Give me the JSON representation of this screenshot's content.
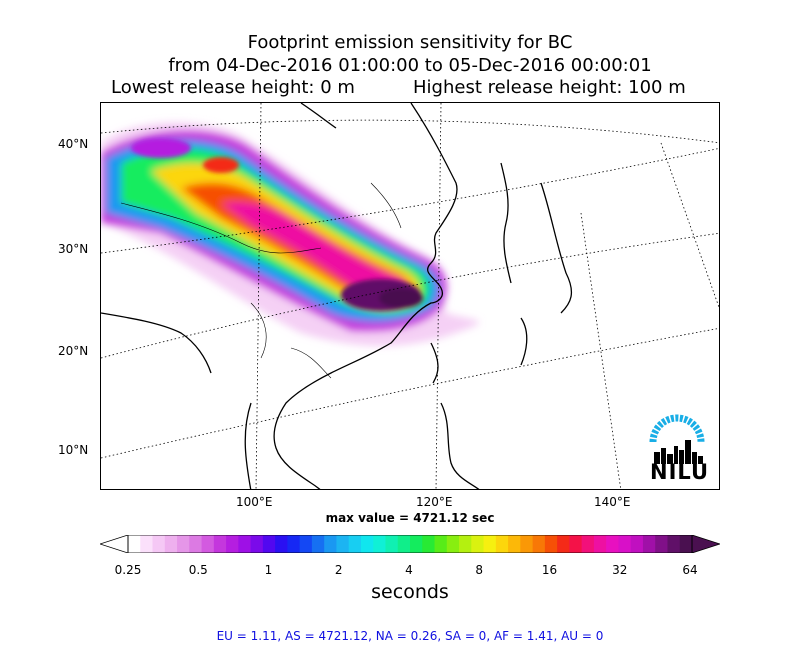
{
  "title": {
    "line1": "Footprint emission sensitivity for BC",
    "line2": "from 04-Dec-2016 01:00:00 to 05-Dec-2016 00:00:01",
    "lowest_release": "Lowest release height: 0 m",
    "highest_release": "Highest release height: 100 m"
  },
  "axes": {
    "lat_labels": [
      "40°N",
      "30°N",
      "20°N",
      "10°N"
    ],
    "lon_labels": [
      "100°E",
      "120°E",
      "140°E"
    ]
  },
  "max_value_text": "max value = 4721.12 sec",
  "colorbar": {
    "ticks": [
      "0.25",
      "0.5",
      "1",
      "2",
      "4",
      "8",
      "16",
      "32",
      "64"
    ],
    "label": "seconds",
    "colors": [
      "#ffffff",
      "#fbe0fb",
      "#f5c8f5",
      "#eeb0ee",
      "#e596e8",
      "#dc7ae3",
      "#d35ae0",
      "#c437dd",
      "#b51ee0",
      "#9e10e6",
      "#7b0aea",
      "#5208f0",
      "#2a10f2",
      "#1628f4",
      "#1448f4",
      "#1670f2",
      "#1a98f2",
      "#1cb4f2",
      "#18cef2",
      "#10e6ee",
      "#10f0d6",
      "#10f0b2",
      "#10ee8a",
      "#14ec5e",
      "#28ea34",
      "#58ec18",
      "#88ee10",
      "#b4f010",
      "#daf210",
      "#f6f010",
      "#fcd60c",
      "#fcb808",
      "#fa9806",
      "#f87806",
      "#f65006",
      "#f42a18",
      "#f41248",
      "#f2107a",
      "#ee10a2",
      "#e810c0",
      "#d810c8",
      "#c010c0",
      "#a010a8",
      "#801088",
      "#601068",
      "#4a1050"
    ]
  },
  "stats": {
    "text": "EU = 1.11,  AS = 4721.12,  NA = 0.26,  SA = 0,  AF = 1.41,  AU = 0"
  },
  "logo": {
    "text": "NILU",
    "arc_color": "#19aee6"
  }
}
